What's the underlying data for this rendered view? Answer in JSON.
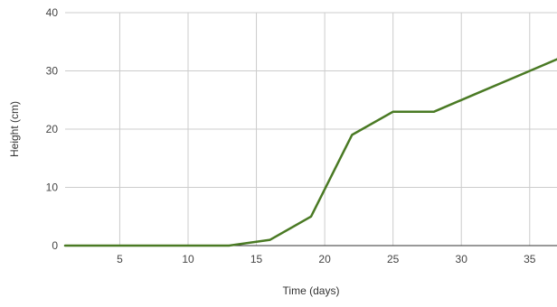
{
  "chart_data": {
    "type": "line",
    "title": "",
    "xlabel": "Time (days)",
    "ylabel": "Height (cm)",
    "xlim": [
      1,
      37
    ],
    "ylim": [
      0,
      40
    ],
    "x_ticks": [
      5,
      10,
      15,
      20,
      25,
      30,
      35
    ],
    "y_ticks": [
      0,
      10,
      20,
      30,
      40
    ],
    "grid": true,
    "legend": "none",
    "series": [
      {
        "color": "#4a7a24",
        "x": [
          1,
          4,
          7,
          10,
          13,
          16,
          19,
          22,
          25,
          28,
          31,
          34,
          37
        ],
        "y": [
          0,
          0,
          0,
          0,
          0,
          1,
          5,
          19,
          23,
          23,
          26,
          29,
          32
        ]
      }
    ]
  }
}
